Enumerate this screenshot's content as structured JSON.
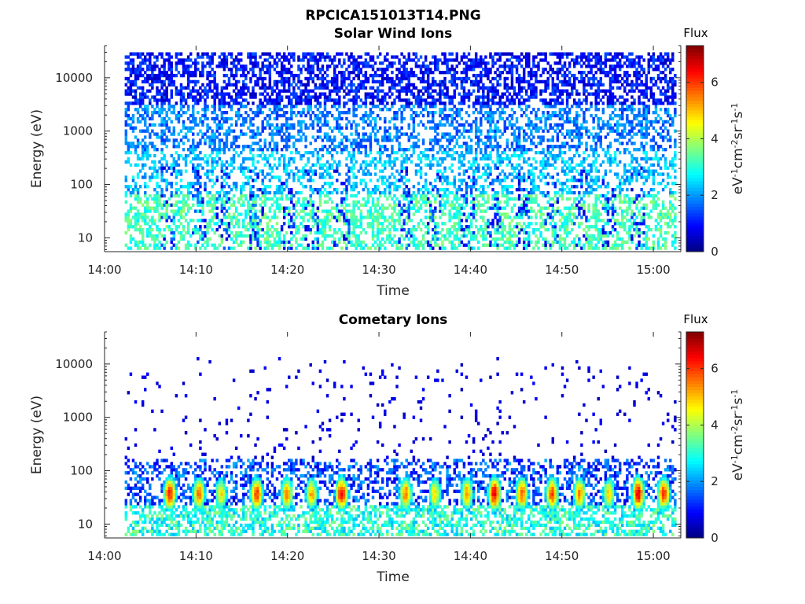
{
  "figure": {
    "file_title": "RPCICA151013T14.PNG"
  },
  "chart_data": [
    {
      "type": "heatmap",
      "title": "Solar Wind Ions",
      "xlabel": "Time",
      "ylabel": "Energy (eV)",
      "x_ticks": [
        "14:00",
        "14:10",
        "14:20",
        "14:30",
        "14:40",
        "14:50",
        "15:00"
      ],
      "y_ticks": [
        "10",
        "100",
        "1000",
        "10000"
      ],
      "y_scale": "log",
      "ylim": [
        5.5,
        40000
      ],
      "xlim_minutes": [
        0,
        63
      ],
      "colorbar": {
        "label": "Flux",
        "units": "eV-1cm-2sr-1s-1",
        "ticks": [
          "0",
          "2",
          "4",
          "6"
        ],
        "range": [
          0,
          7.3
        ]
      },
      "description_of_data": {
        "time_coverage_minutes": [
          2.2,
          62.5
        ],
        "bands": [
          {
            "energy_range_eV": [
              10,
              60
            ],
            "typical_flux": 3.2
          },
          {
            "energy_range_eV": [
              60,
              400
            ],
            "typical_flux": 2.3
          },
          {
            "energy_range_eV": [
              400,
              3000
            ],
            "typical_flux": 1.8
          },
          {
            "energy_range_eV": [
              3000,
              30000
            ],
            "typical_flux": 1.0
          }
        ],
        "enhancement_times_minutes": [
          6.8,
          10.2,
          12.8,
          16.5,
          19.8,
          22.5,
          25.8,
          32.8,
          36.0,
          39.5,
          42.5,
          45.5,
          48.8,
          51.8,
          55.0,
          58.2
        ]
      }
    },
    {
      "type": "heatmap",
      "title": "Cometary Ions",
      "xlabel": "Time",
      "ylabel": "Energy (eV)",
      "x_ticks": [
        "14:00",
        "14:10",
        "14:20",
        "14:30",
        "14:40",
        "14:50",
        "15:00"
      ],
      "y_ticks": [
        "10",
        "100",
        "1000",
        "10000"
      ],
      "y_scale": "log",
      "ylim": [
        5.5,
        40000
      ],
      "xlim_minutes": [
        0,
        63
      ],
      "colorbar": {
        "label": "Flux",
        "units": "eV-1cm-2sr-1s-1",
        "ticks": [
          "0",
          "2",
          "4",
          "6"
        ],
        "range": [
          0,
          7.3
        ]
      },
      "description_of_data": {
        "time_coverage_minutes": [
          2.2,
          62.5
        ],
        "background_energy_range_eV": [
          6,
          150
        ],
        "burst_peak_energy_eV": 35,
        "burst_times_minutes": [
          7.0,
          10.2,
          12.6,
          16.5,
          19.8,
          22.5,
          25.8,
          32.8,
          36.0,
          39.5,
          42.5,
          45.5,
          48.8,
          51.8,
          55.0,
          58.2,
          61.0
        ],
        "burst_peak_flux": [
          6.3,
          5.6,
          4.8,
          6.0,
          5.6,
          5.2,
          6.4,
          5.6,
          4.8,
          5.4,
          6.6,
          5.8,
          6.0,
          5.5,
          4.9,
          6.6,
          6.0
        ]
      }
    }
  ]
}
